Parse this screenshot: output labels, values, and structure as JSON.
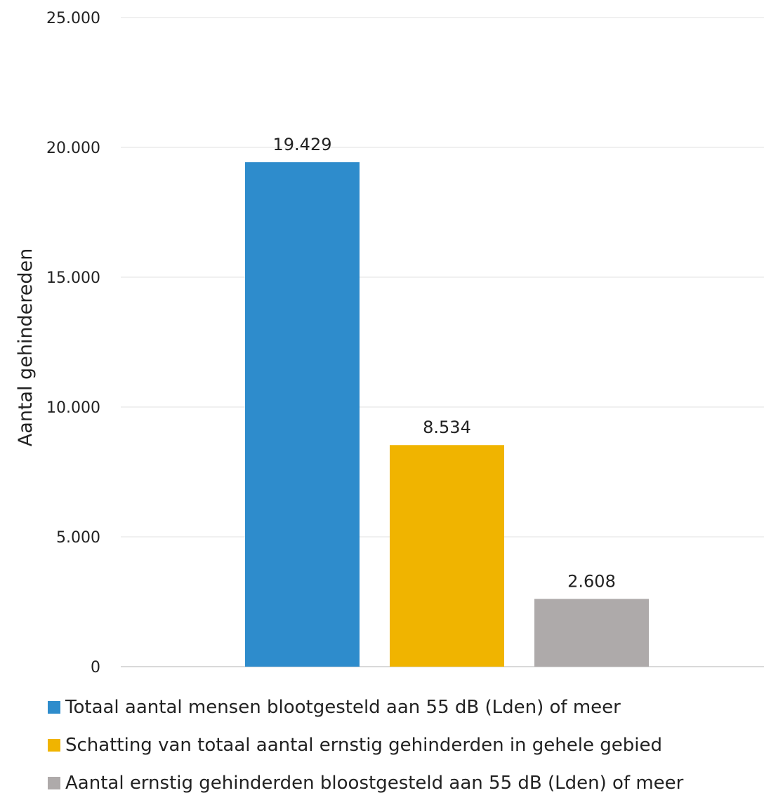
{
  "chart_data": {
    "type": "bar",
    "title": "",
    "xlabel": "",
    "ylabel": "Aantal gehindereden",
    "ylim": [
      0,
      25000
    ],
    "yticks": [
      0,
      5000,
      10000,
      15000,
      20000,
      25000
    ],
    "ytick_labels": [
      "0",
      "5.000",
      "10.000",
      "15.000",
      "20.000",
      "25.000"
    ],
    "grid": true,
    "legend_position": "bottom",
    "series": [
      {
        "name": "Totaal aantal mensen blootgesteld aan 55 dB (Lden) of meer",
        "value": 19429,
        "label": "19.429",
        "color": "#2E8CCC"
      },
      {
        "name": "Schatting van totaal aantal ernstig gehinderden in gehele gebied",
        "value": 8534,
        "label": "8.534",
        "color": "#F0B400"
      },
      {
        "name": "Aantal ernstig gehinderden bloostgesteld aan 55 dB (Lden) of meer",
        "value": 2608,
        "label": "2.608",
        "color": "#AEAAAA"
      }
    ]
  }
}
